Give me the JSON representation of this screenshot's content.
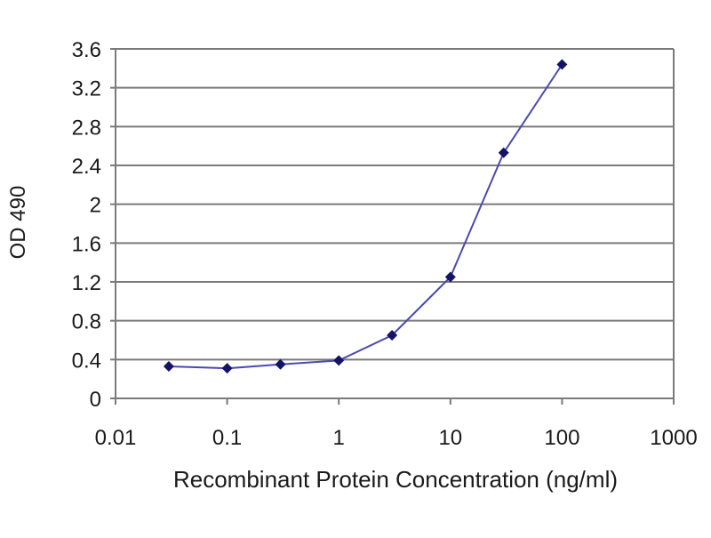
{
  "chart_data": {
    "type": "line",
    "title": "",
    "xlabel": "Recombinant Protein Concentration (ng/ml)",
    "ylabel": "OD 490",
    "x_scale": "log",
    "xlim": [
      0.01,
      1000
    ],
    "ylim": [
      0,
      3.6
    ],
    "x_ticks": [
      "0.01",
      "0.1",
      "1",
      "10",
      "100",
      "1000"
    ],
    "y_ticks": [
      "0",
      "0.4",
      "0.8",
      "1.2",
      "1.6",
      "2",
      "2.4",
      "2.8",
      "3.2",
      "3.6"
    ],
    "grid": "horizontal",
    "series": [
      {
        "x": [
          0.03,
          0.1,
          0.3,
          1,
          3,
          10,
          30,
          100
        ],
        "y": [
          0.33,
          0.31,
          0.35,
          0.39,
          0.65,
          1.25,
          2.53,
          3.44
        ],
        "color": "#1a1a7a",
        "marker": "diamond"
      }
    ]
  },
  "colors": {
    "line": "#4a4ab0",
    "marker": "#141466",
    "grid": "#7a7a7a",
    "axis": "#7a7a7a"
  }
}
